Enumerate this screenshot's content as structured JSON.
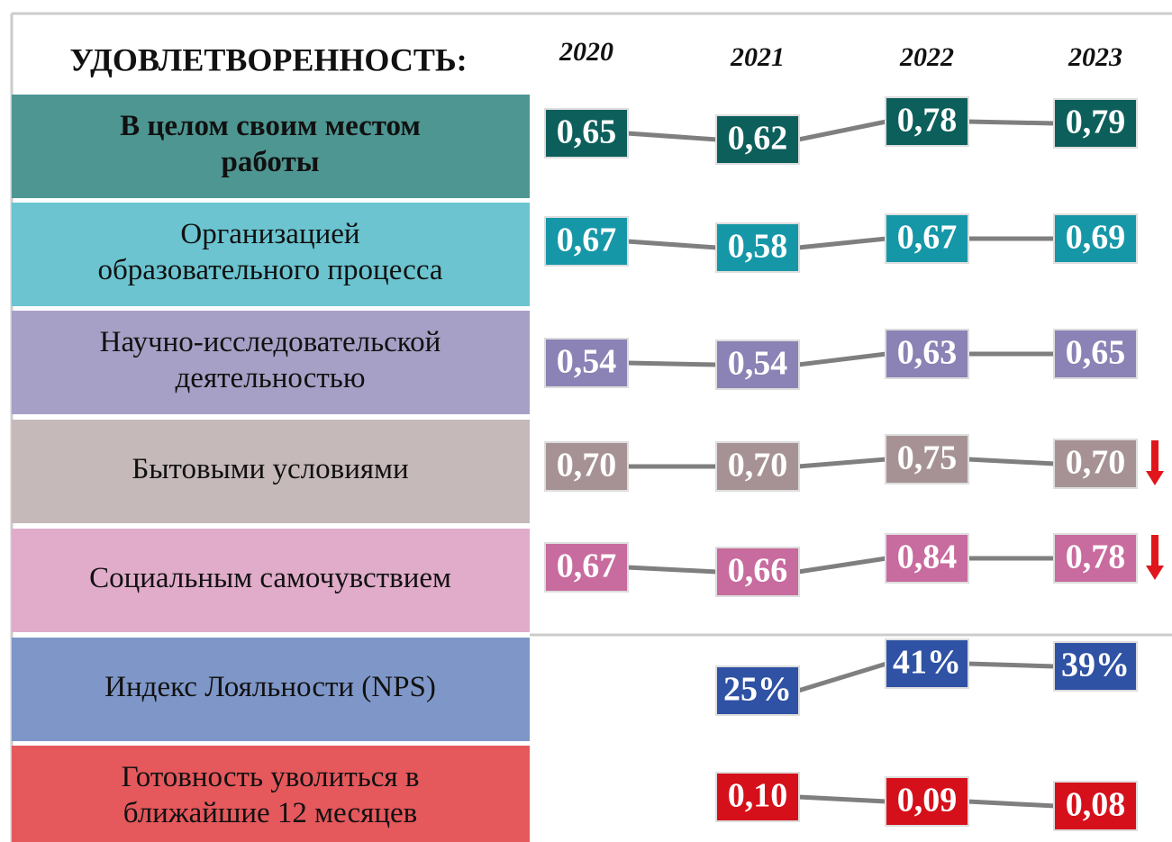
{
  "header": {
    "title": "УДОВЛЕТВОРЕННОСТЬ:",
    "years": [
      "2020",
      "2021",
      "2022",
      "2023"
    ]
  },
  "rows": [
    {
      "label": [
        "В целом своим местом",
        "работы"
      ],
      "values": [
        "0,65",
        "0,62",
        "0,78",
        "0,79"
      ],
      "color": "#4e9692",
      "box_color": "#0c5f5b",
      "bold": true
    },
    {
      "label": [
        "Организацией",
        "образовательного процесса"
      ],
      "values": [
        "0,67",
        "0,58",
        "0,67",
        "0,69"
      ],
      "color": "#6bc4d0",
      "box_color": "#1697a8"
    },
    {
      "label": [
        "Научно-исследовательской",
        "деятельностью"
      ],
      "values": [
        "0,54",
        "0,54",
        "0,63",
        "0,65"
      ],
      "color": "#a7a0c6",
      "box_color": "#8b82b5"
    },
    {
      "label": [
        "Бытовыми условиями"
      ],
      "values": [
        "0,70",
        "0,70",
        "0,75",
        "0,70"
      ],
      "color": "#c6b9ba",
      "box_color": "#a69294"
    },
    {
      "label": [
        "Социальным самочувствием"
      ],
      "values": [
        "0,67",
        "0,66",
        "0,84",
        "0,78"
      ],
      "color": "#e0acc9",
      "box_color": "#c86b9e"
    },
    {
      "label": [
        "Индекс Лояльности (NPS)"
      ],
      "values": [
        null,
        "25%",
        "41%",
        "39%"
      ],
      "color": "#7f97c8",
      "box_color": "#2f52a4"
    },
    {
      "label": [
        "Готовность уволиться в",
        "ближайшие 12 месяцев"
      ],
      "values": [
        null,
        "0,10",
        "0,09",
        "0,08"
      ],
      "color": "#e5585c",
      "box_color": "#d5101a"
    }
  ]
}
